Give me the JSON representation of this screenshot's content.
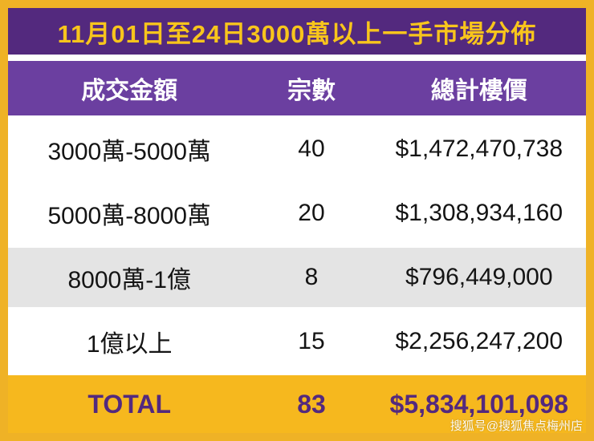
{
  "chart_data": {
    "type": "table",
    "title": "11月01日至24日3000萬以上一手市場分佈",
    "columns": [
      "成交金額",
      "宗數",
      "總計樓價"
    ],
    "rows": [
      {
        "range": "3000萬-5000萬",
        "count": "40",
        "total_price": "$1,472,470,738"
      },
      {
        "range": "5000萬-8000萬",
        "count": "20",
        "total_price": "$1,308,934,160"
      },
      {
        "range": "8000萬-1億",
        "count": "8",
        "total_price": "$796,449,000"
      },
      {
        "range": "1億以上",
        "count": "15",
        "total_price": "$2,256,247,200"
      }
    ],
    "total": {
      "label": "TOTAL",
      "count": "83",
      "total_price": "$5,834,101,098"
    }
  },
  "watermark": "搜狐号@搜狐焦点梅州店",
  "colors": {
    "frame_gold": "#EFB226",
    "title_bg": "#53297E",
    "header_bg": "#6B3FA0",
    "title_text": "#F8C51C",
    "row_alt_bg": "#E4E4E4",
    "total_bg": "#F6B81E",
    "total_text": "#53297E"
  }
}
